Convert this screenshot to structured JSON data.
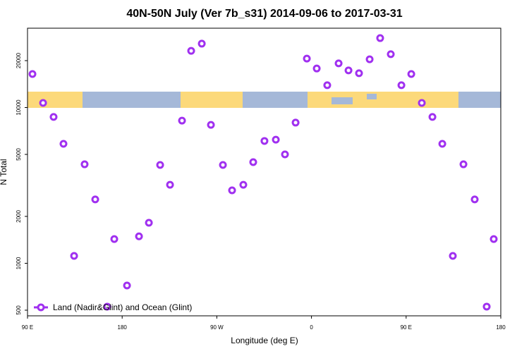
{
  "chart_data": {
    "type": "scatter",
    "title": "40N-50N July (Ver 7b_s31)   2014-09-06 to 2017-03-31",
    "x_label": "Longitude (deg E)",
    "y_label": "N Total",
    "xlim": [
      90,
      540
    ],
    "xticks": [
      {
        "value": 90,
        "label": "90 E"
      },
      180,
      {
        "value": 270,
        "label": "90 W"
      },
      {
        "value": 360,
        "label": "0"
      },
      {
        "value": 450,
        "label": "90 E"
      },
      {
        "value": 540,
        "label": "180"
      }
    ],
    "ylim": [
      460,
      32300
    ],
    "yscale": "log",
    "yticks": [
      500,
      1000,
      2000,
      5000,
      10000,
      20000
    ],
    "legend": "bottom-left",
    "series": [
      {
        "name": "Land (Nadir&Glint) and Ocean (Glint)",
        "color": "#a030f0",
        "x": [
          94.7,
          104.8,
          114.8,
          124.2,
          134.3,
          144.3,
          154.4,
          165.8,
          172.5,
          184.6,
          196.0,
          205.4,
          216.1,
          225.5,
          236.9,
          245.6,
          255.7,
          264.4,
          275.8,
          284.5,
          295.2,
          304.6,
          315.3,
          326.1,
          334.8,
          344.9,
          355.6,
          365.0,
          375.0,
          385.8,
          395.2,
          405.2,
          415.3,
          425.3,
          435.4,
          445.5,
          454.9,
          464.9,
          475.0,
          484.4,
          494.4,
          504.5,
          515.2,
          526.6,
          533.3
        ],
        "values": [
          16400,
          10700,
          8700,
          5850,
          1115,
          4320,
          2570,
          527,
          1430,
          720,
          1490,
          1820,
          4280,
          3190,
          8240,
          23100,
          25700,
          7740,
          4280,
          2940,
          3190,
          4460,
          6100,
          6220,
          5000,
          8000,
          20600,
          17800,
          13900,
          19200,
          17300,
          16600,
          20400,
          27900,
          22000,
          13900,
          16400,
          10700,
          8700,
          5850,
          1115,
          4320,
          2570,
          527,
          1430
        ]
      }
    ]
  }
}
